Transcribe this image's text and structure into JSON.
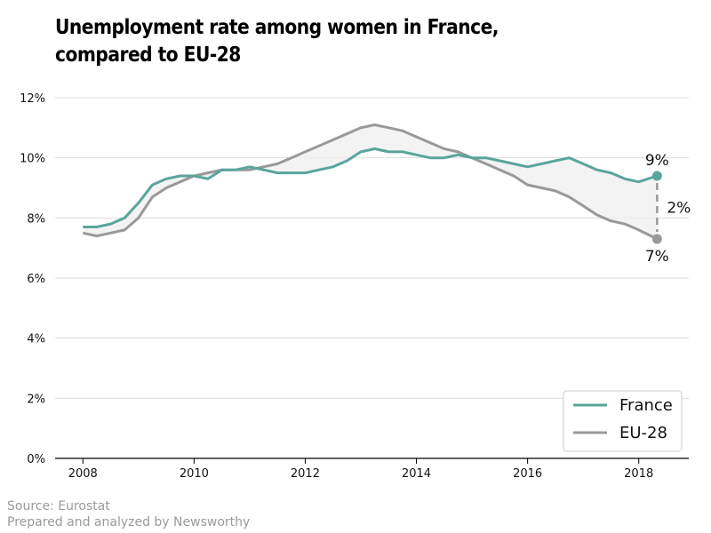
{
  "colors": {
    "france": "#5aa59b",
    "eu": "#999999",
    "grid": "#dddddd",
    "band": "#f0f0f0"
  },
  "footer": {
    "source": "Source: Eurostat",
    "credit": "Prepared and analyzed by Newsworthy"
  },
  "chart_data": {
    "type": "line",
    "title": "Unemployment rate among women in France, compared to EU-28",
    "xlabel": "",
    "ylabel": "",
    "xlim": [
      2007.5,
      2018.9
    ],
    "ylim": [
      0,
      12
    ],
    "x_ticks": [
      2008,
      2010,
      2012,
      2014,
      2016,
      2018
    ],
    "x_tick_labels": [
      "2008",
      "2010",
      "2012",
      "2014",
      "2016",
      "2018"
    ],
    "y_ticks": [
      0,
      2,
      4,
      6,
      8,
      10,
      12
    ],
    "y_tick_labels": [
      "0%",
      "2%",
      "4%",
      "6%",
      "8%",
      "10%",
      "12%"
    ],
    "grid": "horizontal",
    "legend": "bottom-right",
    "series": [
      {
        "name": "France",
        "x": [
          2008.0,
          2008.25,
          2008.5,
          2008.75,
          2009.0,
          2009.25,
          2009.5,
          2009.75,
          2010.0,
          2010.25,
          2010.5,
          2010.75,
          2011.0,
          2011.25,
          2011.5,
          2011.75,
          2012.0,
          2012.25,
          2012.5,
          2012.75,
          2013.0,
          2013.25,
          2013.5,
          2013.75,
          2014.0,
          2014.25,
          2014.5,
          2014.75,
          2015.0,
          2015.25,
          2015.5,
          2015.75,
          2016.0,
          2016.25,
          2016.5,
          2016.75,
          2017.0,
          2017.25,
          2017.5,
          2017.75,
          2018.0,
          2018.33
        ],
        "values": [
          7.7,
          7.7,
          7.8,
          8.0,
          8.5,
          9.1,
          9.3,
          9.4,
          9.4,
          9.3,
          9.6,
          9.6,
          9.7,
          9.6,
          9.5,
          9.5,
          9.5,
          9.6,
          9.7,
          9.9,
          10.2,
          10.3,
          10.2,
          10.2,
          10.1,
          10.0,
          10.0,
          10.1,
          10.0,
          10.0,
          9.9,
          9.8,
          9.7,
          9.8,
          9.9,
          10.0,
          9.8,
          9.6,
          9.5,
          9.3,
          9.2,
          9.4
        ]
      },
      {
        "name": "EU-28",
        "x": [
          2008.0,
          2008.25,
          2008.5,
          2008.75,
          2009.0,
          2009.25,
          2009.5,
          2009.75,
          2010.0,
          2010.25,
          2010.5,
          2010.75,
          2011.0,
          2011.25,
          2011.5,
          2011.75,
          2012.0,
          2012.25,
          2012.5,
          2012.75,
          2013.0,
          2013.25,
          2013.5,
          2013.75,
          2014.0,
          2014.25,
          2014.5,
          2014.75,
          2015.0,
          2015.25,
          2015.5,
          2015.75,
          2016.0,
          2016.25,
          2016.5,
          2016.75,
          2017.0,
          2017.25,
          2017.5,
          2017.75,
          2018.0,
          2018.33
        ],
        "values": [
          7.5,
          7.4,
          7.5,
          7.6,
          8.0,
          8.7,
          9.0,
          9.2,
          9.4,
          9.5,
          9.6,
          9.6,
          9.6,
          9.7,
          9.8,
          10.0,
          10.2,
          10.4,
          10.6,
          10.8,
          11.0,
          11.1,
          11.0,
          10.9,
          10.7,
          10.5,
          10.3,
          10.2,
          10.0,
          9.8,
          9.6,
          9.4,
          9.1,
          9.0,
          8.9,
          8.7,
          8.4,
          8.1,
          7.9,
          7.8,
          7.6,
          7.3
        ]
      }
    ],
    "annotations": {
      "france_end": "9%",
      "eu_end": "7%",
      "gap": "2%"
    }
  }
}
